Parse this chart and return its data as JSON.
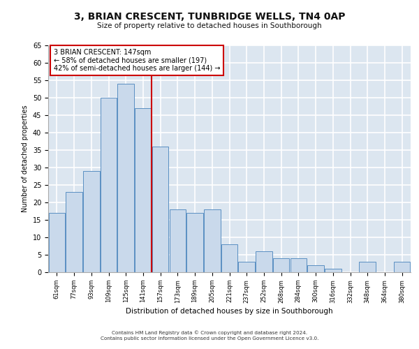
{
  "title": "3, BRIAN CRESCENT, TUNBRIDGE WELLS, TN4 0AP",
  "subtitle": "Size of property relative to detached houses in Southborough",
  "xlabel": "Distribution of detached houses by size in Southborough",
  "ylabel": "Number of detached properties",
  "categories": [
    "61sqm",
    "77sqm",
    "93sqm",
    "109sqm",
    "125sqm",
    "141sqm",
    "157sqm",
    "173sqm",
    "189sqm",
    "205sqm",
    "221sqm",
    "237sqm",
    "252sqm",
    "268sqm",
    "284sqm",
    "300sqm",
    "316sqm",
    "332sqm",
    "348sqm",
    "364sqm",
    "380sqm"
  ],
  "values": [
    17,
    23,
    29,
    50,
    54,
    47,
    36,
    18,
    17,
    18,
    8,
    3,
    6,
    4,
    4,
    2,
    1,
    0,
    3,
    0,
    3
  ],
  "bar_color": "#c9d9eb",
  "bar_edge_color": "#5a8fc2",
  "background_color": "#dce6f0",
  "grid_color": "#ffffff",
  "annotation_box_color": "#ffffff",
  "annotation_box_edge": "#cc0000",
  "annotation_line_color": "#cc0000",
  "annotation_text_line1": "3 BRIAN CRESCENT: 147sqm",
  "annotation_text_line2": "← 58% of detached houses are smaller (197)",
  "annotation_text_line3": "42% of semi-detached houses are larger (144) →",
  "property_line_x": 5.5,
  "ylim": [
    0,
    65
  ],
  "yticks": [
    0,
    5,
    10,
    15,
    20,
    25,
    30,
    35,
    40,
    45,
    50,
    55,
    60,
    65
  ],
  "footer_line1": "Contains HM Land Registry data © Crown copyright and database right 2024.",
  "footer_line2": "Contains public sector information licensed under the Open Government Licence v3.0."
}
